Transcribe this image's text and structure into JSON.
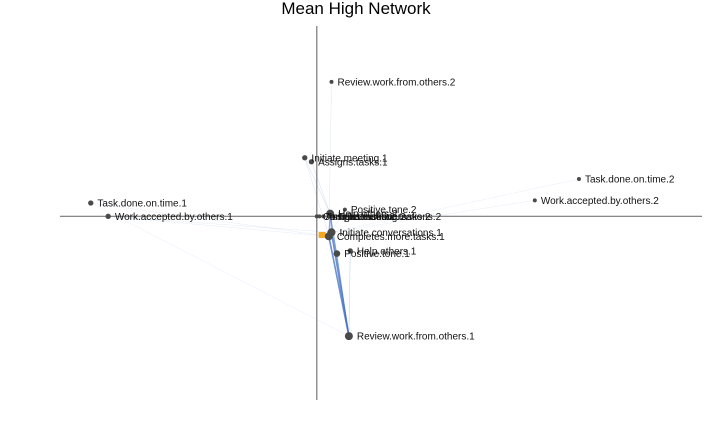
{
  "chart_data": {
    "type": "scatter",
    "title": "Mean High Network",
    "xlim": [
      -1.92,
      2.88
    ],
    "ylim": [
      -1.38,
      1.43
    ],
    "grid": false,
    "colors": {
      "node": "#4a4a4a",
      "edge": "#4472c4",
      "highlight": "#f5a623",
      "axis": "#777777"
    },
    "nodes": [
      {
        "name": "Review.work.from.others.2",
        "x": 0.11,
        "y": 1.01,
        "size": 3
      },
      {
        "name": "Initiate.meeting.1",
        "x": -0.09,
        "y": 0.44,
        "size": 4
      },
      {
        "name": "Assigns.tasks.1",
        "x": -0.04,
        "y": 0.41,
        "size": 4
      },
      {
        "name": "Task.done.on.time.2",
        "x": 1.96,
        "y": 0.28,
        "size": 3
      },
      {
        "name": "Work.accepted.by.others.2",
        "x": 1.63,
        "y": 0.12,
        "size": 3
      },
      {
        "name": "Task.done.on.time.1",
        "x": -1.69,
        "y": 0.1,
        "size": 4
      },
      {
        "name": "Work.accepted.by.others.1",
        "x": -1.56,
        "y": 0.0,
        "size": 4
      },
      {
        "name": "Positive.tone.2",
        "x": 0.21,
        "y": 0.05,
        "size": 3
      },
      {
        "name": "Help.others.2",
        "x": 0.1,
        "y": 0.02,
        "size": 6
      },
      {
        "name": "Initiate.conversations.2",
        "x": 0.12,
        "y": 0.0,
        "size": 3
      },
      {
        "name": "Initiate.meeting.2",
        "x": 0.05,
        "y": 0.0,
        "size": 3
      },
      {
        "name": "Assigns.tasks.2",
        "x": 0.02,
        "y": 0.0,
        "size": 3
      },
      {
        "name": "Completes.more.tasks.2",
        "x": 0.0,
        "y": 0.0,
        "size": 3
      },
      {
        "name": "Initiate.conversations.1",
        "x": 0.11,
        "y": -0.12,
        "size": 6
      },
      {
        "name": "Completes.more.tasks.1",
        "x": 0.09,
        "y": -0.15,
        "size": 6
      },
      {
        "name": "Help.others.1",
        "x": 0.25,
        "y": -0.26,
        "size": 4
      },
      {
        "name": "Positive.tone.1",
        "x": 0.15,
        "y": -0.28,
        "size": 5
      },
      {
        "name": "Review.work.from.others.1",
        "x": 0.24,
        "y": -0.9,
        "size": 6
      }
    ],
    "highlight_x": 0.04,
    "highlight_y": -0.14,
    "edges": [
      [
        "Review.work.from.others.1",
        "Initiate.conversations.1",
        3
      ],
      [
        "Review.work.from.others.1",
        "Completes.more.tasks.1",
        3
      ],
      [
        "Review.work.from.others.1",
        "Help.others.2",
        2
      ],
      [
        "Review.work.from.others.1",
        "Positive.tone.1",
        1.5
      ],
      [
        "Review.work.from.others.1",
        "Help.others.1",
        1
      ],
      [
        "Help.others.2",
        "Initiate.conversations.1",
        2
      ],
      [
        "Help.others.2",
        "Completes.more.tasks.1",
        2
      ],
      [
        "Help.others.2",
        "Positive.tone.1",
        1.2
      ],
      [
        "Help.others.2",
        "Initiate.meeting.1",
        0.8
      ],
      [
        "Help.others.2",
        "Assigns.tasks.1",
        0.8
      ],
      [
        "Initiate.conversations.1",
        "Completes.more.tasks.1",
        2
      ],
      [
        "Initiate.conversations.1",
        "Positive.tone.1",
        1
      ],
      [
        "Review.work.from.others.2",
        "Completes.more.tasks.1",
        0.5
      ],
      [
        "Initiate.meeting.1",
        "Completes.more.tasks.1",
        0.6
      ],
      [
        "Work.accepted.by.others.1",
        "Completes.more.tasks.1",
        0.3
      ],
      [
        "Work.accepted.by.others.1",
        "Initiate.conversations.1",
        0.3
      ],
      [
        "Task.done.on.time.1",
        "Completes.more.tasks.1",
        0.3
      ],
      [
        "Task.done.on.time.1",
        "Review.work.from.others.1",
        0.2
      ],
      [
        "Task.done.on.time.2",
        "Initiate.conversations.1",
        0.2
      ],
      [
        "Work.accepted.by.others.2",
        "Initiate.conversations.1",
        0.2
      ],
      [
        "Positive.tone.2",
        "Completes.more.tasks.1",
        0.5
      ]
    ]
  }
}
